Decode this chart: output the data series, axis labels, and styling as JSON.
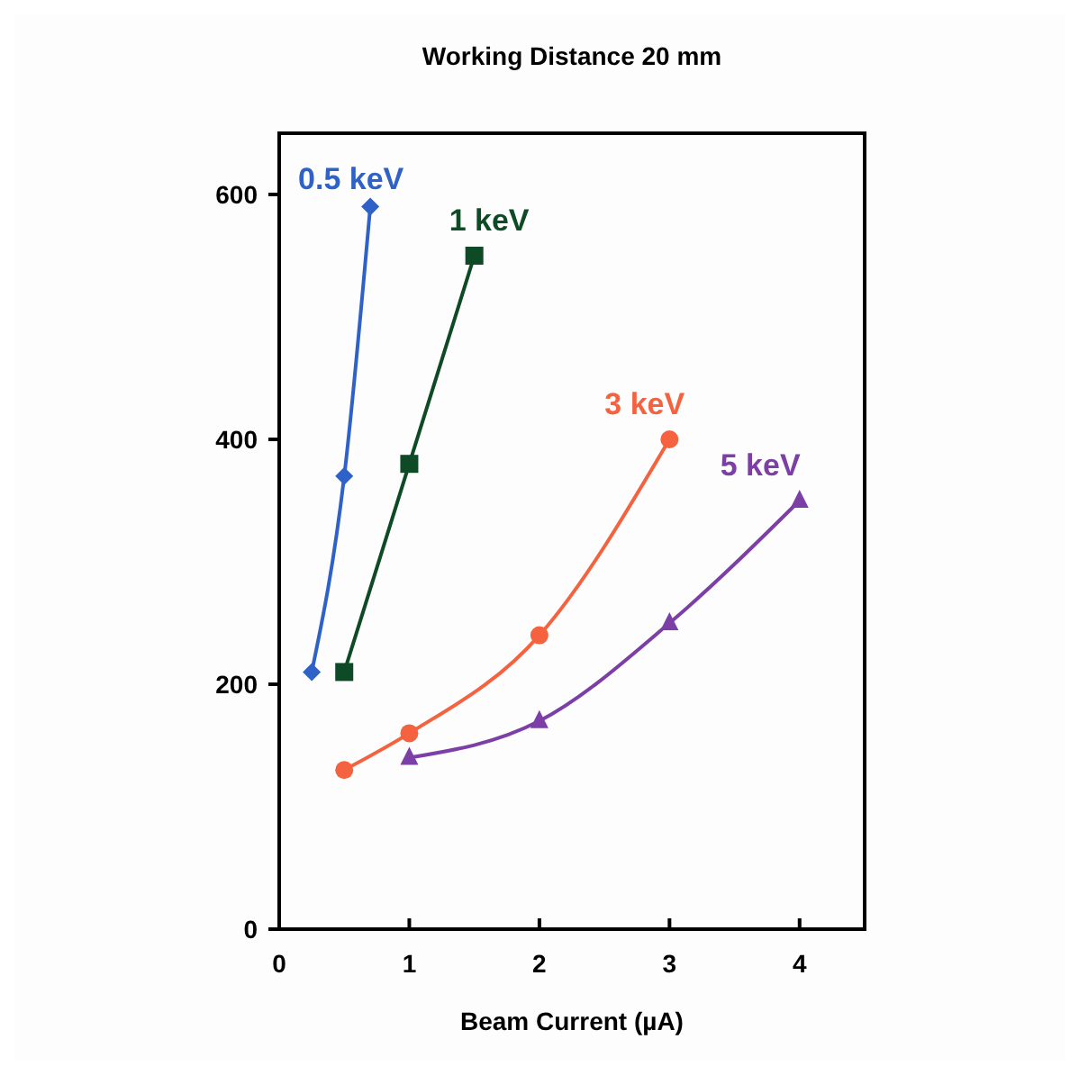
{
  "chart_data": {
    "type": "line",
    "title": "Working Distance 20 mm",
    "xlabel": "Beam Current (µA)",
    "xlim": [
      0,
      4.5
    ],
    "xticks": [
      0,
      1,
      2,
      3,
      4
    ],
    "ylim": [
      0,
      650
    ],
    "yticks": [
      0,
      200,
      400,
      600
    ],
    "grid": false,
    "legend": false,
    "series": [
      {
        "name": "0.5 keV",
        "color": "#2f62c8",
        "marker": "diamond",
        "x": [
          0.25,
          0.5,
          0.7
        ],
        "values": [
          210,
          370,
          590
        ]
      },
      {
        "name": "1 keV",
        "color": "#0f4a26",
        "marker": "square",
        "x": [
          0.5,
          1,
          1.5
        ],
        "values": [
          210,
          380,
          550
        ]
      },
      {
        "name": "3 keV",
        "color": "#f4623f",
        "marker": "circle",
        "x": [
          0.5,
          1,
          2,
          3
        ],
        "values": [
          130,
          160,
          240,
          400
        ]
      },
      {
        "name": "5 keV",
        "color": "#7b3fa6",
        "marker": "triangle",
        "x": [
          1,
          2,
          3,
          4
        ],
        "values": [
          140,
          170,
          250,
          350
        ]
      }
    ]
  }
}
